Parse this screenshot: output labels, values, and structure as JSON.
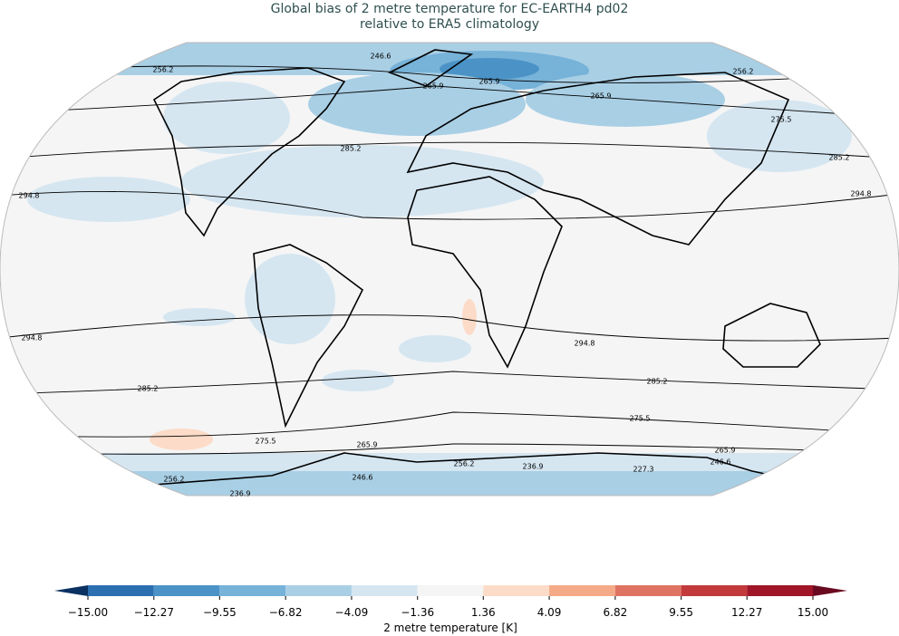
{
  "title": [
    "Global bias of 2 metre temperature for EC-EARTH4 pd02",
    "relative to ERA5 climatology"
  ],
  "contour_labels": [
    "256.2",
    "246.6",
    "265.9",
    "265.9",
    "256.2",
    "265.9",
    "275.5",
    "285.2",
    "285.2",
    "294.8",
    "294.8",
    "294.8",
    "294.8",
    "285.2",
    "285.2",
    "275.5",
    "275.5",
    "265.9",
    "265.9",
    "256.2",
    "246.6",
    "236.9",
    "227.3",
    "246.6",
    "236.9",
    "256.2"
  ],
  "colorbar": {
    "label": "2 metre temperature [K]",
    "ticks": [
      {
        "value": -15,
        "label": "−15.00"
      },
      {
        "value": -12.27,
        "label": "−12.27"
      },
      {
        "value": -9.55,
        "label": "−9.55"
      },
      {
        "value": -6.82,
        "label": "−6.82"
      },
      {
        "value": -4.09,
        "label": "−4.09"
      },
      {
        "value": -1.36,
        "label": "−1.36"
      },
      {
        "value": 1.36,
        "label": "1.36"
      },
      {
        "value": 4.09,
        "label": "4.09"
      },
      {
        "value": 6.82,
        "label": "6.82"
      },
      {
        "value": 9.55,
        "label": "9.55"
      },
      {
        "value": 12.27,
        "label": "12.27"
      },
      {
        "value": 15,
        "label": "15.00"
      }
    ],
    "colors": [
      "#2b6fb0",
      "#4b93c6",
      "#77b2d8",
      "#a9cfe5",
      "#d5e6f1",
      "#f5f5f5",
      "#fcdcc8",
      "#f4aa87",
      "#df7362",
      "#c23a3b",
      "#a01528"
    ],
    "extend_colors": [
      "#0b3163",
      "#6a0a20"
    ]
  }
}
